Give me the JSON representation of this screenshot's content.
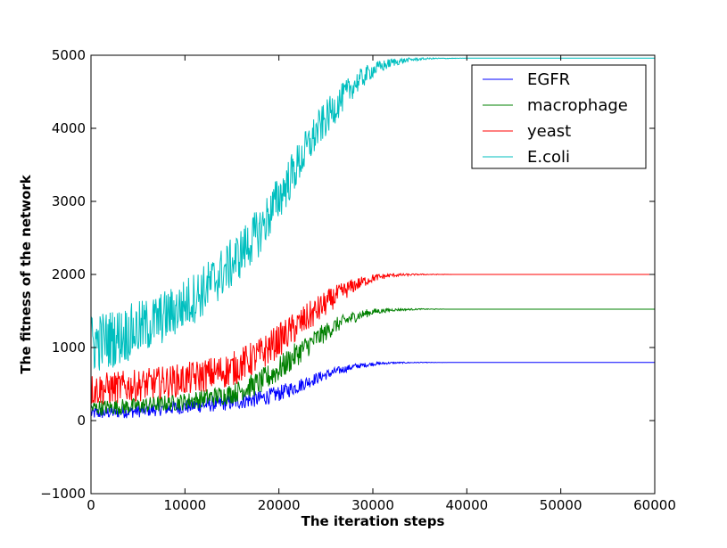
{
  "chart_data": {
    "type": "line",
    "xlabel": "The iteration steps",
    "ylabel": "The fitness of the network",
    "xlim": [
      0,
      60000
    ],
    "ylim": [
      -1000,
      5000
    ],
    "xticks": [
      0,
      10000,
      20000,
      30000,
      40000,
      50000,
      60000
    ],
    "yticks": [
      -1000,
      0,
      1000,
      2000,
      3000,
      4000,
      5000
    ],
    "xtick_labels": [
      "0",
      "10000",
      "20000",
      "30000",
      "40000",
      "50000",
      "60000"
    ],
    "ytick_labels": [
      "−1000",
      "0",
      "1000",
      "2000",
      "3000",
      "4000",
      "5000"
    ],
    "grid": false,
    "legend_position": "top-right",
    "series": [
      {
        "name": "EGFR",
        "color": "#0000ff",
        "x": [
          0,
          5000,
          10000,
          15000,
          18000,
          20000,
          22000,
          24000,
          26000,
          28000,
          30000,
          32000,
          35000,
          38000,
          60000
        ],
        "y": [
          100,
          130,
          190,
          250,
          300,
          370,
          470,
          580,
          670,
          740,
          775,
          790,
          795,
          795,
          795
        ],
        "noise": [
          90,
          90,
          100,
          110,
          110,
          110,
          100,
          80,
          60,
          40,
          25,
          12,
          5,
          0,
          0
        ]
      },
      {
        "name": "macrophage",
        "color": "#008000",
        "x": [
          0,
          5000,
          10000,
          15000,
          18000,
          20000,
          22000,
          24000,
          26000,
          28000,
          30000,
          32000,
          35000,
          38000,
          60000
        ],
        "y": [
          170,
          200,
          260,
          370,
          520,
          700,
          920,
          1120,
          1300,
          1420,
          1490,
          1515,
          1525,
          1525,
          1525
        ],
        "noise": [
          110,
          110,
          120,
          140,
          170,
          180,
          170,
          150,
          110,
          80,
          45,
          20,
          8,
          0,
          0
        ]
      },
      {
        "name": "yeast",
        "color": "#ff0000",
        "x": [
          0,
          5000,
          10000,
          15000,
          18000,
          20000,
          22000,
          24000,
          26000,
          28000,
          30000,
          32000,
          35000,
          39000,
          60000
        ],
        "y": [
          420,
          480,
          560,
          700,
          900,
          1100,
          1300,
          1500,
          1700,
          1850,
          1950,
          1990,
          2000,
          2000,
          2000
        ],
        "noise": [
          230,
          220,
          230,
          240,
          240,
          230,
          220,
          200,
          150,
          100,
          55,
          25,
          8,
          0,
          0
        ]
      },
      {
        "name": "E.coli",
        "color": "#00bfbf",
        "x": [
          0,
          3000,
          6000,
          9000,
          12000,
          15000,
          18000,
          20000,
          22000,
          24000,
          26000,
          28000,
          30000,
          32000,
          34000,
          36000,
          40000,
          60000
        ],
        "y": [
          1050,
          1150,
          1300,
          1500,
          1780,
          2150,
          2600,
          3050,
          3500,
          3950,
          4300,
          4600,
          4800,
          4900,
          4940,
          4955,
          4960,
          4960
        ],
        "noise": [
          420,
          400,
          380,
          360,
          360,
          350,
          340,
          330,
          300,
          270,
          230,
          170,
          110,
          60,
          25,
          10,
          0,
          0
        ]
      }
    ]
  }
}
